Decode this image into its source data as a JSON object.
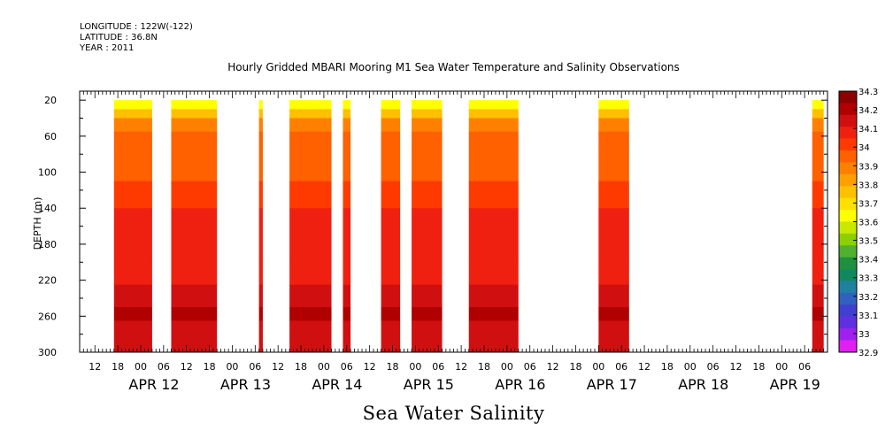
{
  "header": {
    "longitude": "LONGITUDE : 122W(-122)",
    "latitude": "LATITUDE : 36.8N",
    "year": "YEAR : 2011"
  },
  "chart_data": {
    "type": "heatmap",
    "title": "Hourly Gridded MBARI Mooring M1 Sea Water Temperature and Salinity Observations",
    "variable_label": "Sea Water Salinity",
    "ylabel": "DEPTH (m)",
    "y_inverted": true,
    "ylim": [
      300,
      10
    ],
    "y_ticks": [
      20,
      60,
      100,
      140,
      180,
      220,
      260,
      300
    ],
    "x_hour_ticks": [
      "12",
      "18",
      "00",
      "06",
      "12",
      "18",
      "00",
      "06",
      "12",
      "18",
      "00",
      "06",
      "12",
      "18",
      "00",
      "06",
      "12",
      "18",
      "00",
      "06",
      "12",
      "18",
      "00",
      "06",
      "12",
      "18",
      "00",
      "06",
      "12",
      "18",
      "00",
      "06"
    ],
    "x_date_labels": [
      "APR 12",
      "APR 13",
      "APR 14",
      "APR 15",
      "APR 16",
      "APR 17",
      "APR 18",
      "APR 19"
    ],
    "x_range_hours": [
      "2011-04-11T08:00",
      "2011-04-19T12:00"
    ],
    "colorbar": {
      "levels": [
        "34.3",
        "34.2",
        "34.1",
        "34",
        "33.9",
        "33.8",
        "33.7",
        "33.6",
        "33.5",
        "33.4",
        "33.3",
        "33.2",
        "33.1",
        "33",
        "32.9"
      ],
      "colors": [
        "#8B0000",
        "#B00000",
        "#D01010",
        "#F02010",
        "#FF3A00",
        "#FF6000",
        "#FF8000",
        "#FFA000",
        "#FFC000",
        "#FFE000",
        "#FFFF00",
        "#C8E800",
        "#8CD000",
        "#50B030",
        "#209040",
        "#108860",
        "#2080A0",
        "#3060C0",
        "#4040D0",
        "#6030E0",
        "#A020F0",
        "#E020F0"
      ]
    },
    "observation_windows": [
      {
        "start": "2011-04-11T17:00",
        "end": "2011-04-12T03:00"
      },
      {
        "start": "2011-04-12T08:00",
        "end": "2011-04-12T20:00"
      },
      {
        "start": "2011-04-13T07:00",
        "end": "2011-04-13T08:00"
      },
      {
        "start": "2011-04-13T15:00",
        "end": "2011-04-14T02:00"
      },
      {
        "start": "2011-04-14T05:00",
        "end": "2011-04-14T07:00"
      },
      {
        "start": "2011-04-14T15:00",
        "end": "2011-04-14T20:00"
      },
      {
        "start": "2011-04-14T23:00",
        "end": "2011-04-15T07:00"
      },
      {
        "start": "2011-04-15T14:00",
        "end": "2011-04-16T03:00"
      },
      {
        "start": "2011-04-17T00:00",
        "end": "2011-04-17T08:00"
      },
      {
        "start": "2011-04-19T08:00",
        "end": "2011-04-19T11:00"
      }
    ],
    "depth_profile": [
      {
        "depth": 20,
        "salinity": 33.65
      },
      {
        "depth": 30,
        "salinity": 33.8
      },
      {
        "depth": 40,
        "salinity": 33.9
      },
      {
        "depth": 55,
        "salinity": 33.95
      },
      {
        "depth": 75,
        "salinity": 34.0
      },
      {
        "depth": 110,
        "salinity": 34.05
      },
      {
        "depth": 140,
        "salinity": 34.1
      },
      {
        "depth": 200,
        "salinity": 34.1
      },
      {
        "depth": 225,
        "salinity": 34.15
      },
      {
        "depth": 250,
        "salinity": 34.25
      },
      {
        "depth": 265,
        "salinity": 34.2
      },
      {
        "depth": 285,
        "salinity": 34.2
      },
      {
        "depth": 300,
        "salinity": 34.15
      }
    ]
  }
}
